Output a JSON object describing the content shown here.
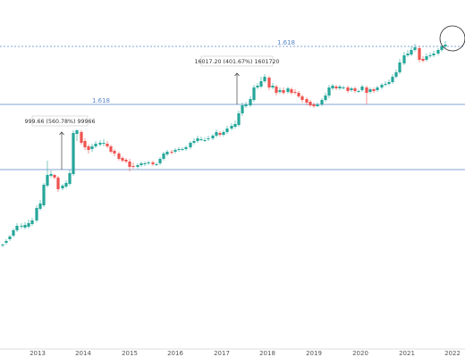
{
  "chart_data": {
    "type": "candlestick",
    "x_axis": {
      "ticks": [
        "2013",
        "2014",
        "2015",
        "2016",
        "2017",
        "2018",
        "2019",
        "2020",
        "2021",
        "2022"
      ]
    },
    "y_scale": "log",
    "fib_levels": [
      {
        "label": "1.618",
        "style": "dashed",
        "color": "#5a86c9"
      },
      {
        "label": "1.618",
        "style": "solid",
        "color": "#5a86c9"
      },
      {
        "label": "",
        "style": "solid",
        "color": "#5a86c9"
      }
    ],
    "measurements": [
      {
        "label": "999.66 (560.78%) 99966"
      },
      {
        "label": "16017.20 (401.67%) 1601720"
      }
    ],
    "annotation": {
      "shape": "circle"
    },
    "colors": {
      "up": "#26a69a",
      "down": "#ef5350",
      "fib": "#5a86c9",
      "axis": "#555555"
    }
  }
}
